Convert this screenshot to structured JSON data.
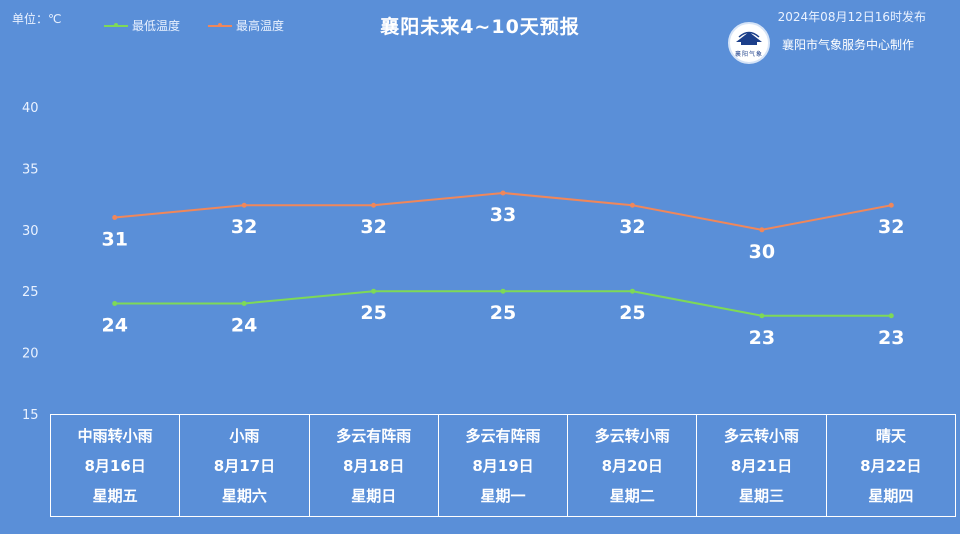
{
  "header": {
    "unit": "单位：℃",
    "title": "襄阳未来4~10天预报",
    "publish_time": "2024年08月12日16时发布",
    "organization": "襄阳市气象服务中心制作",
    "logo_text": "襄阳气象"
  },
  "legend": [
    {
      "label": "最低温度",
      "color": "#7ed957"
    },
    {
      "label": "最高温度",
      "color": "#f0875a"
    }
  ],
  "chart_data": {
    "type": "line",
    "title": "襄阳未来4~10天预报",
    "ylim": [
      15,
      40
    ],
    "yticks": [
      15,
      20,
      25,
      30,
      35,
      40
    ],
    "categories": [
      "8月16日",
      "8月17日",
      "8月18日",
      "8月19日",
      "8月20日",
      "8月21日",
      "8月22日"
    ],
    "series": [
      {
        "name": "最低温度",
        "color": "#7ed957",
        "values": [
          24,
          24,
          25,
          25,
          25,
          23,
          23
        ]
      },
      {
        "name": "最高温度",
        "color": "#f0875a",
        "values": [
          31,
          32,
          32,
          33,
          32,
          30,
          32
        ]
      }
    ],
    "grid": false
  },
  "days": [
    {
      "weather": "中雨转小雨",
      "date": "8月16日",
      "weekday": "星期五"
    },
    {
      "weather": "小雨",
      "date": "8月17日",
      "weekday": "星期六"
    },
    {
      "weather": "多云有阵雨",
      "date": "8月18日",
      "weekday": "星期日"
    },
    {
      "weather": "多云有阵雨",
      "date": "8月19日",
      "weekday": "星期一"
    },
    {
      "weather": "多云转小雨",
      "date": "8月20日",
      "weekday": "星期二"
    },
    {
      "weather": "多云转小雨",
      "date": "8月21日",
      "weekday": "星期三"
    },
    {
      "weather": "晴天",
      "date": "8月22日",
      "weekday": "星期四"
    }
  ]
}
